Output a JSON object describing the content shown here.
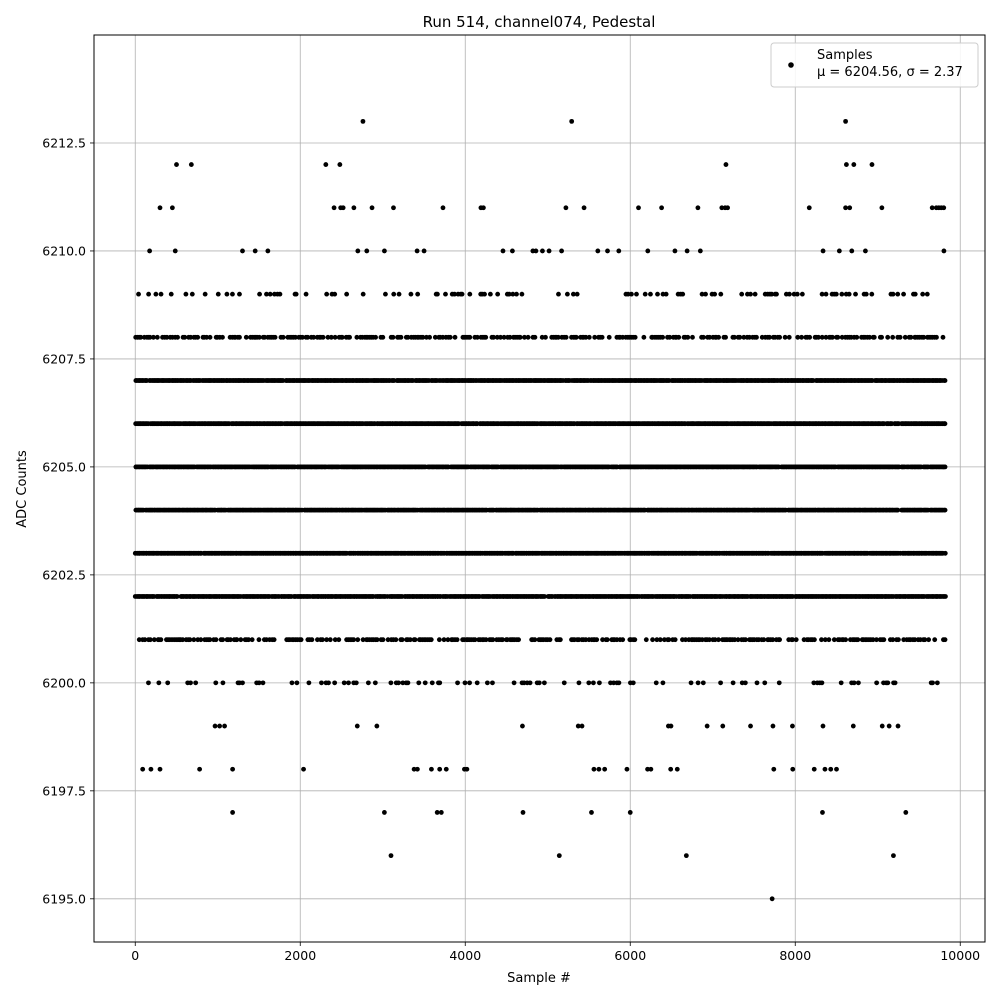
{
  "chart_data": {
    "type": "scatter",
    "title": "Run 514, channel074, Pedestal",
    "xlabel": "Sample #",
    "ylabel": "ADC Counts",
    "xlim": [
      -500,
      10300
    ],
    "ylim": [
      6194,
      6215
    ],
    "xticks": [
      0,
      2000,
      4000,
      6000,
      8000,
      10000
    ],
    "xtick_labels": [
      "0",
      "2000",
      "4000",
      "6000",
      "8000",
      "10000"
    ],
    "yticks": [
      6195.0,
      6197.5,
      6200.0,
      6202.5,
      6205.0,
      6207.5,
      6210.0,
      6212.5
    ],
    "ytick_labels": [
      "6195.0",
      "6197.5",
      "6200.0",
      "6202.5",
      "6205.0",
      "6207.5",
      "6210.0",
      "6212.5"
    ],
    "grid": true,
    "legend_position": "top-right",
    "marker_color": "#000000",
    "series": [
      {
        "name": "Samples",
        "stats_label": "μ = 6204.56, σ = 2.37",
        "x_range": [
          0,
          9820
        ],
        "dense_levels": [
          6202,
          6203,
          6204,
          6205,
          6206,
          6207
        ],
        "medium_levels": [
          6201,
          6208
        ],
        "sparse_levels": [
          6200,
          6209
        ],
        "rare_levels": [
          6199,
          6210
        ],
        "points": [
          {
            "x": 2760,
            "y": 6213
          },
          {
            "x": 5290,
            "y": 6213
          },
          {
            "x": 8610,
            "y": 6213
          },
          {
            "x": 500,
            "y": 6212
          },
          {
            "x": 680,
            "y": 6212
          },
          {
            "x": 2310,
            "y": 6212
          },
          {
            "x": 2480,
            "y": 6212
          },
          {
            "x": 7160,
            "y": 6212
          },
          {
            "x": 8620,
            "y": 6212
          },
          {
            "x": 8710,
            "y": 6212
          },
          {
            "x": 8930,
            "y": 6212
          },
          {
            "x": 300,
            "y": 6211
          },
          {
            "x": 450,
            "y": 6211
          },
          {
            "x": 2410,
            "y": 6211
          },
          {
            "x": 2490,
            "y": 6211
          },
          {
            "x": 2520,
            "y": 6211
          },
          {
            "x": 2650,
            "y": 6211
          },
          {
            "x": 2870,
            "y": 6211
          },
          {
            "x": 3130,
            "y": 6211
          },
          {
            "x": 3730,
            "y": 6211
          },
          {
            "x": 4190,
            "y": 6211
          },
          {
            "x": 4220,
            "y": 6211
          },
          {
            "x": 5220,
            "y": 6211
          },
          {
            "x": 5440,
            "y": 6211
          },
          {
            "x": 6100,
            "y": 6211
          },
          {
            "x": 6380,
            "y": 6211
          },
          {
            "x": 6820,
            "y": 6211
          },
          {
            "x": 7110,
            "y": 6211
          },
          {
            "x": 7150,
            "y": 6211
          },
          {
            "x": 7180,
            "y": 6211
          },
          {
            "x": 8170,
            "y": 6211
          },
          {
            "x": 8610,
            "y": 6211
          },
          {
            "x": 8660,
            "y": 6211
          },
          {
            "x": 9050,
            "y": 6211
          },
          {
            "x": 9660,
            "y": 6211
          },
          {
            "x": 9710,
            "y": 6211
          },
          {
            "x": 9740,
            "y": 6211
          },
          {
            "x": 9770,
            "y": 6211
          },
          {
            "x": 9800,
            "y": 6211
          },
          {
            "x": 90,
            "y": 6198
          },
          {
            "x": 190,
            "y": 6198
          },
          {
            "x": 300,
            "y": 6198
          },
          {
            "x": 780,
            "y": 6198
          },
          {
            "x": 1180,
            "y": 6198
          },
          {
            "x": 2040,
            "y": 6198
          },
          {
            "x": 3380,
            "y": 6198
          },
          {
            "x": 3420,
            "y": 6198
          },
          {
            "x": 3590,
            "y": 6198
          },
          {
            "x": 3690,
            "y": 6198
          },
          {
            "x": 3770,
            "y": 6198
          },
          {
            "x": 3990,
            "y": 6198
          },
          {
            "x": 4020,
            "y": 6198
          },
          {
            "x": 5560,
            "y": 6198
          },
          {
            "x": 5620,
            "y": 6198
          },
          {
            "x": 5690,
            "y": 6198
          },
          {
            "x": 5960,
            "y": 6198
          },
          {
            "x": 6210,
            "y": 6198
          },
          {
            "x": 6250,
            "y": 6198
          },
          {
            "x": 6490,
            "y": 6198
          },
          {
            "x": 6570,
            "y": 6198
          },
          {
            "x": 7740,
            "y": 6198
          },
          {
            "x": 7970,
            "y": 6198
          },
          {
            "x": 8230,
            "y": 6198
          },
          {
            "x": 8360,
            "y": 6198
          },
          {
            "x": 8430,
            "y": 6198
          },
          {
            "x": 8500,
            "y": 6198
          },
          {
            "x": 1180,
            "y": 6197
          },
          {
            "x": 3020,
            "y": 6197
          },
          {
            "x": 3660,
            "y": 6197
          },
          {
            "x": 3710,
            "y": 6197
          },
          {
            "x": 4700,
            "y": 6197
          },
          {
            "x": 5530,
            "y": 6197
          },
          {
            "x": 6000,
            "y": 6197
          },
          {
            "x": 8330,
            "y": 6197
          },
          {
            "x": 9340,
            "y": 6197
          },
          {
            "x": 3100,
            "y": 6196
          },
          {
            "x": 5140,
            "y": 6196
          },
          {
            "x": 6680,
            "y": 6196
          },
          {
            "x": 9190,
            "y": 6196
          },
          {
            "x": 7720,
            "y": 6195
          }
        ]
      }
    ]
  }
}
